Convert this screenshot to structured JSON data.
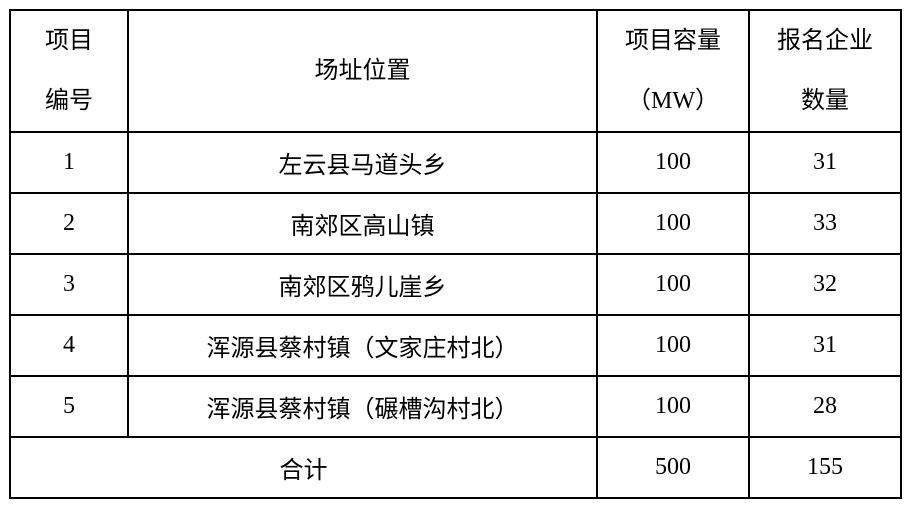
{
  "table": {
    "headers": [
      {
        "line1": "项目",
        "line2": "编号"
      },
      {
        "line1": "场址位置",
        "line2": ""
      },
      {
        "line1": "项目容量",
        "line2": "（MW）"
      },
      {
        "line1": "报名企业",
        "line2": "数量"
      }
    ],
    "rows": [
      {
        "no": "1",
        "location": "左云县马道头乡",
        "capacity": "100",
        "count": "31"
      },
      {
        "no": "2",
        "location": "南郊区高山镇",
        "capacity": "100",
        "count": "33"
      },
      {
        "no": "3",
        "location": "南郊区鸦儿崖乡",
        "capacity": "100",
        "count": "32"
      },
      {
        "no": "4",
        "location": "浑源县蔡村镇（文家庄村北）",
        "capacity": "100",
        "count": "31"
      },
      {
        "no": "5",
        "location": "浑源县蔡村镇（碾槽沟村北）",
        "capacity": "100",
        "count": "28"
      }
    ],
    "total": {
      "label": "合计",
      "capacity": "500",
      "count": "155"
    }
  }
}
